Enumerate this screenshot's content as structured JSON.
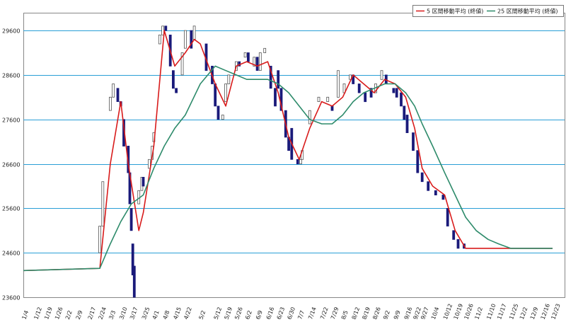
{
  "chart_data": {
    "type": "candlestick+line",
    "legend": {
      "placement": "top-right",
      "items": [
        {
          "label": "5 区間移動平均 (終値)",
          "color": "#d81b1b"
        },
        {
          "label": "25 区間移動平均 (終値)",
          "color": "#2e8b6b"
        }
      ]
    },
    "grid": true,
    "ylim": [
      23600,
      30000
    ],
    "yticks": [
      23600,
      24600,
      25600,
      26600,
      27600,
      28600,
      29600
    ],
    "xlabels": [
      "1/4",
      "1/12",
      "1/19",
      "1/26",
      "2/2",
      "2/9",
      "2/17",
      "2/24",
      "3/3",
      "3/10",
      "3/17",
      "3/25",
      "4/1",
      "4/8",
      "4/15",
      "4/22",
      "5/2",
      "5/12",
      "5/19",
      "5/26",
      "6/2",
      "6/9",
      "6/16",
      "6/23",
      "6/30",
      "7/7",
      "7/14",
      "7/22",
      "7/29",
      "8/5",
      "8/12",
      "8/19",
      "8/26",
      "9/2",
      "9/9",
      "9/16",
      "9/22",
      "9/27",
      "10/4",
      "10/12",
      "10/19",
      "10/26",
      "11/2",
      "11/10",
      "11/17",
      "11/25",
      "12/2",
      "12/9",
      "12/16",
      "12/23"
    ],
    "candles_note": "open/close body values, data units",
    "candles": [
      {
        "date": "2/24",
        "open": 24600,
        "close": 25200
      },
      {
        "date": "2/26",
        "open": 25200,
        "close": 26200
      },
      {
        "date": "3/3",
        "open": 27800,
        "close": 28100
      },
      {
        "date": "3/5",
        "open": 28100,
        "close": 28400
      },
      {
        "date": "3/8",
        "open": 28300,
        "close": 28000
      },
      {
        "date": "3/10",
        "open": 28000,
        "close": 27900
      },
      {
        "date": "3/12",
        "open": 27600,
        "close": 27000
      },
      {
        "date": "3/15",
        "open": 27000,
        "close": 26400
      },
      {
        "date": "3/16",
        "open": 26400,
        "close": 25700
      },
      {
        "date": "3/17",
        "open": 25600,
        "close": 25100
      },
      {
        "date": "3/18",
        "open": 24800,
        "close": 24100
      },
      {
        "date": "3/19",
        "open": 24300,
        "close": 23600
      },
      {
        "date": "3/22",
        "open": 25700,
        "close": 26000
      },
      {
        "date": "3/24",
        "open": 26000,
        "close": 26300
      },
      {
        "date": "3/25",
        "open": 26300,
        "close": 26100
      },
      {
        "date": "3/29",
        "open": 26500,
        "close": 26700
      },
      {
        "date": "3/31",
        "open": 26700,
        "close": 27000
      },
      {
        "date": "4/1",
        "open": 27100,
        "close": 27300
      },
      {
        "date": "4/5",
        "open": 29300,
        "close": 29500
      },
      {
        "date": "4/7",
        "open": 29500,
        "close": 29700
      },
      {
        "date": "4/9",
        "open": 29700,
        "close": 29600
      },
      {
        "date": "4/12",
        "open": 29500,
        "close": 28800
      },
      {
        "date": "4/14",
        "open": 28700,
        "close": 28300
      },
      {
        "date": "4/16",
        "open": 28300,
        "close": 28200
      },
      {
        "date": "4/20",
        "open": 28600,
        "close": 29100
      },
      {
        "date": "4/22",
        "open": 29200,
        "close": 29600
      },
      {
        "date": "4/26",
        "open": 29600,
        "close": 29200
      },
      {
        "date": "4/28",
        "open": 29400,
        "close": 29700
      },
      {
        "date": "5/6",
        "open": 29300,
        "close": 28700
      },
      {
        "date": "5/10",
        "open": 28800,
        "close": 28400
      },
      {
        "date": "5/12",
        "open": 28400,
        "close": 27900
      },
      {
        "date": "5/14",
        "open": 27900,
        "close": 27600
      },
      {
        "date": "5/17",
        "open": 27600,
        "close": 27700
      },
      {
        "date": "5/19",
        "open": 28000,
        "close": 28400
      },
      {
        "date": "5/21",
        "open": 28400,
        "close": 28600
      },
      {
        "date": "5/26",
        "open": 28700,
        "close": 28900
      },
      {
        "date": "5/28",
        "open": 28900,
        "close": 28800
      },
      {
        "date": "6/1",
        "open": 29000,
        "close": 29100
      },
      {
        "date": "6/3",
        "open": 29100,
        "close": 28900
      },
      {
        "date": "6/7",
        "open": 28800,
        "close": 29000
      },
      {
        "date": "6/9",
        "open": 29000,
        "close": 28700
      },
      {
        "date": "6/11",
        "open": 28700,
        "close": 29100
      },
      {
        "date": "6/14",
        "open": 29100,
        "close": 29200
      },
      {
        "date": "6/18",
        "open": 28800,
        "close": 28300
      },
      {
        "date": "6/21",
        "open": 28300,
        "close": 27900
      },
      {
        "date": "6/23",
        "open": 28700,
        "close": 28300
      },
      {
        "date": "6/25",
        "open": 28300,
        "close": 27800
      },
      {
        "date": "6/28",
        "open": 27800,
        "close": 27200
      },
      {
        "date": "6/30",
        "open": 27200,
        "close": 26900
      },
      {
        "date": "7/2",
        "open": 27400,
        "close": 26700
      },
      {
        "date": "7/6",
        "open": 26700,
        "close": 26600
      },
      {
        "date": "7/8",
        "open": 26600,
        "close": 26700
      },
      {
        "date": "7/9",
        "open": 26700,
        "close": 26900
      },
      {
        "date": "7/14",
        "open": 27500,
        "close": 27800
      },
      {
        "date": "7/20",
        "open": 28000,
        "close": 28100
      },
      {
        "date": "7/26",
        "open": 28000,
        "close": 28100
      },
      {
        "date": "7/29",
        "open": 27900,
        "close": 27800
      },
      {
        "date": "8/2",
        "open": 28100,
        "close": 28700
      },
      {
        "date": "8/6",
        "open": 28200,
        "close": 28400
      },
      {
        "date": "8/10",
        "open": 28500,
        "close": 28600
      },
      {
        "date": "8/12",
        "open": 28600,
        "close": 28400
      },
      {
        "date": "8/16",
        "open": 28400,
        "close": 28200
      },
      {
        "date": "8/20",
        "open": 28200,
        "close": 28000
      },
      {
        "date": "8/24",
        "open": 28300,
        "close": 28100
      },
      {
        "date": "8/27",
        "open": 28200,
        "close": 28400
      },
      {
        "date": "8/31",
        "open": 28500,
        "close": 28700
      },
      {
        "date": "9/3",
        "open": 28600,
        "close": 28400
      },
      {
        "date": "9/8",
        "open": 28300,
        "close": 28200
      },
      {
        "date": "9/10",
        "open": 28300,
        "close": 28100
      },
      {
        "date": "9/13",
        "open": 28200,
        "close": 27900
      },
      {
        "date": "9/15",
        "open": 27900,
        "close": 27600
      },
      {
        "date": "9/17",
        "open": 27700,
        "close": 27300
      },
      {
        "date": "9/21",
        "open": 27300,
        "close": 26900
      },
      {
        "date": "9/24",
        "open": 26900,
        "close": 26400
      },
      {
        "date": "9/27",
        "open": 26400,
        "close": 26200
      },
      {
        "date": "10/1",
        "open": 26200,
        "close": 26000
      },
      {
        "date": "10/6",
        "open": 26000,
        "close": 25900
      },
      {
        "date": "10/11",
        "open": 25900,
        "close": 25800
      },
      {
        "date": "10/14",
        "open": 25600,
        "close": 25200
      },
      {
        "date": "10/18",
        "open": 25100,
        "close": 24900
      },
      {
        "date": "10/21",
        "open": 24900,
        "close": 24700
      },
      {
        "date": "10/25",
        "open": 24800,
        "close": 24700
      }
    ],
    "series": [
      {
        "name": "5 区間移動平均 (終値)",
        "color": "#d81b1b",
        "points": [
          {
            "date": "1/4",
            "value": 24200
          },
          {
            "date": "2/24",
            "value": 24250
          },
          {
            "date": "3/3",
            "value": 26600
          },
          {
            "date": "3/10",
            "value": 28000
          },
          {
            "date": "3/15",
            "value": 26600
          },
          {
            "date": "3/22",
            "value": 25100
          },
          {
            "date": "3/25",
            "value": 25500
          },
          {
            "date": "4/1",
            "value": 27000
          },
          {
            "date": "4/8",
            "value": 29600
          },
          {
            "date": "4/15",
            "value": 28800
          },
          {
            "date": "4/22",
            "value": 29100
          },
          {
            "date": "4/28",
            "value": 29400
          },
          {
            "date": "5/2",
            "value": 29300
          },
          {
            "date": "5/12",
            "value": 28400
          },
          {
            "date": "5/19",
            "value": 27900
          },
          {
            "date": "5/26",
            "value": 28800
          },
          {
            "date": "6/2",
            "value": 28900
          },
          {
            "date": "6/9",
            "value": 28800
          },
          {
            "date": "6/16",
            "value": 28900
          },
          {
            "date": "6/23",
            "value": 28200
          },
          {
            "date": "6/30",
            "value": 27200
          },
          {
            "date": "7/7",
            "value": 26700
          },
          {
            "date": "7/14",
            "value": 27400
          },
          {
            "date": "7/22",
            "value": 28000
          },
          {
            "date": "7/29",
            "value": 27900
          },
          {
            "date": "8/5",
            "value": 28100
          },
          {
            "date": "8/12",
            "value": 28600
          },
          {
            "date": "8/19",
            "value": 28400
          },
          {
            "date": "8/26",
            "value": 28200
          },
          {
            "date": "9/2",
            "value": 28500
          },
          {
            "date": "9/9",
            "value": 28400
          },
          {
            "date": "9/16",
            "value": 28100
          },
          {
            "date": "9/22",
            "value": 27400
          },
          {
            "date": "9/27",
            "value": 26500
          },
          {
            "date": "10/4",
            "value": 26100
          },
          {
            "date": "10/12",
            "value": 25900
          },
          {
            "date": "10/19",
            "value": 25100
          },
          {
            "date": "10/26",
            "value": 24700
          },
          {
            "date": "11/2",
            "value": 24700
          },
          {
            "date": "12/23",
            "value": 24700
          }
        ]
      },
      {
        "name": "25 区間移動平均 (終値)",
        "color": "#2e8b6b",
        "points": [
          {
            "date": "1/4",
            "value": 24200
          },
          {
            "date": "2/24",
            "value": 24250
          },
          {
            "date": "3/3",
            "value": 24800
          },
          {
            "date": "3/10",
            "value": 25300
          },
          {
            "date": "3/17",
            "value": 25700
          },
          {
            "date": "3/25",
            "value": 25900
          },
          {
            "date": "4/1",
            "value": 26500
          },
          {
            "date": "4/8",
            "value": 27000
          },
          {
            "date": "4/15",
            "value": 27400
          },
          {
            "date": "4/22",
            "value": 27700
          },
          {
            "date": "5/2",
            "value": 28400
          },
          {
            "date": "5/12",
            "value": 28800
          },
          {
            "date": "5/19",
            "value": 28700
          },
          {
            "date": "5/26",
            "value": 28600
          },
          {
            "date": "6/2",
            "value": 28500
          },
          {
            "date": "6/9",
            "value": 28500
          },
          {
            "date": "6/16",
            "value": 28500
          },
          {
            "date": "6/23",
            "value": 28400
          },
          {
            "date": "6/30",
            "value": 28200
          },
          {
            "date": "7/7",
            "value": 27900
          },
          {
            "date": "7/14",
            "value": 27600
          },
          {
            "date": "7/22",
            "value": 27500
          },
          {
            "date": "7/29",
            "value": 27500
          },
          {
            "date": "8/5",
            "value": 27700
          },
          {
            "date": "8/12",
            "value": 28000
          },
          {
            "date": "8/19",
            "value": 28200
          },
          {
            "date": "8/26",
            "value": 28300
          },
          {
            "date": "9/2",
            "value": 28400
          },
          {
            "date": "9/9",
            "value": 28400
          },
          {
            "date": "9/16",
            "value": 28200
          },
          {
            "date": "9/22",
            "value": 27900
          },
          {
            "date": "9/27",
            "value": 27500
          },
          {
            "date": "10/4",
            "value": 27000
          },
          {
            "date": "10/12",
            "value": 26400
          },
          {
            "date": "10/19",
            "value": 25900
          },
          {
            "date": "10/26",
            "value": 25400
          },
          {
            "date": "11/2",
            "value": 25100
          },
          {
            "date": "11/10",
            "value": 24900
          },
          {
            "date": "11/17",
            "value": 24800
          },
          {
            "date": "11/25",
            "value": 24700
          },
          {
            "date": "12/2",
            "value": 24700
          },
          {
            "date": "12/23",
            "value": 24700
          }
        ]
      }
    ]
  }
}
